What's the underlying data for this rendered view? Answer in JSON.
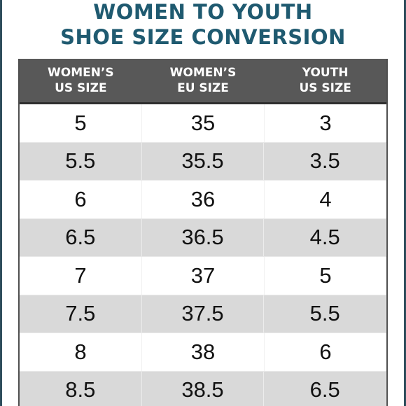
{
  "title": {
    "line1": "WOMEN TO YOUTH",
    "line2": "SHOE SIZE CONVERSION"
  },
  "table": {
    "headers": [
      "WOMEN’S\nUS SIZE",
      "WOMEN’S\nEU SIZE",
      "YOUTH\nUS SIZE"
    ],
    "rows": [
      [
        "5",
        "35",
        "3"
      ],
      [
        "5.5",
        "35.5",
        "3.5"
      ],
      [
        "6",
        "36",
        "4"
      ],
      [
        "6.5",
        "36.5",
        "4.5"
      ],
      [
        "7",
        "37",
        "5"
      ],
      [
        "7.5",
        "37.5",
        "5.5"
      ],
      [
        "8",
        "38",
        "6"
      ],
      [
        "8.5",
        "38.5",
        "6.5"
      ]
    ]
  },
  "colors": {
    "title": "#1f5a70",
    "header_bg": "#585858",
    "stripe": "#d9d9d9"
  }
}
